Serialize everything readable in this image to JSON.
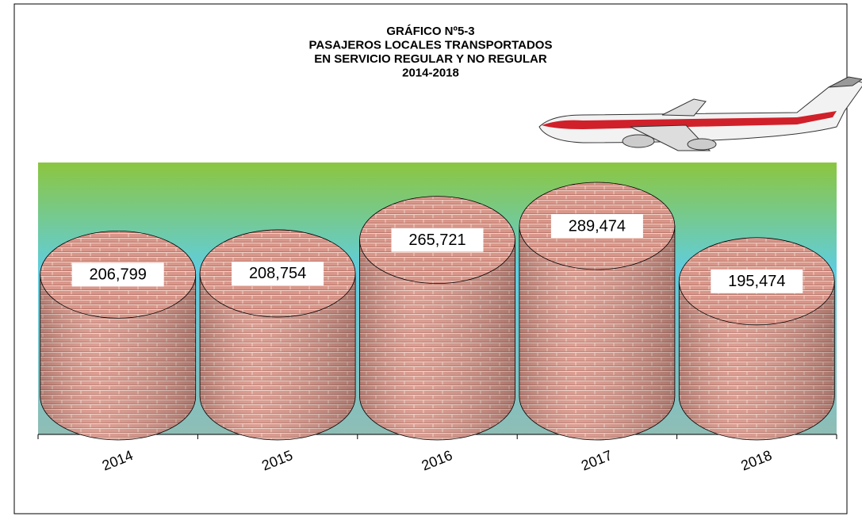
{
  "chart_data": {
    "type": "cylinder",
    "title": [
      "GRÁFICO Nº5-3",
      "PASAJEROS LOCALES TRANSPORTADOS",
      "EN SERVICIO REGULAR Y NO REGULAR",
      "2014-2018"
    ],
    "categories": [
      "2014",
      "2015",
      "2016",
      "2017",
      "2018"
    ],
    "values": [
      206799,
      208754,
      265721,
      289474,
      195474
    ],
    "value_labels": [
      "206,799",
      "208,754",
      "265,721",
      "289,474",
      "195,474"
    ],
    "color": "#d9968a"
  }
}
